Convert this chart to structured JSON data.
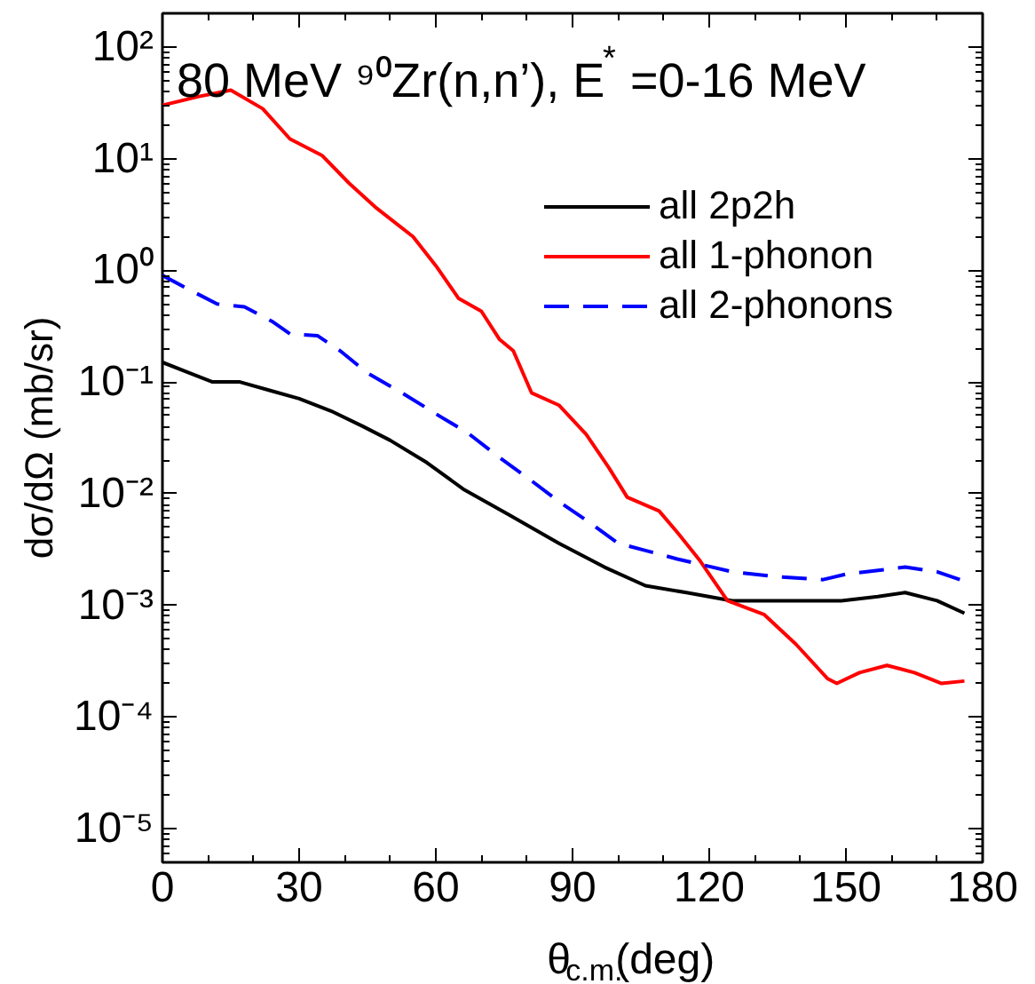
{
  "chart_data": {
    "type": "line",
    "title": "80 MeV ⁹⁰Zr(n,n’), E$^{*}$=0-16 MeV",
    "xlabel": "θ$_{c.m.}$(deg)",
    "ylabel": "dσ/dΩ (mb/sr)",
    "log": "y",
    "grid": false,
    "legend": "top right",
    "xlim": [
      0,
      180
    ],
    "xticks": [
      0,
      30,
      60,
      90,
      120,
      150,
      180
    ],
    "ylim": [
      5e-06,
      200
    ],
    "yticks": [
      {
        "value": 1e-05,
        "label": "10⁻⁵"
      },
      {
        "value": 0.0001,
        "label": "10⁻⁴"
      },
      {
        "value": 0.001,
        "label": "10⁻³"
      },
      {
        "value": 0.01,
        "label": "10⁻²"
      },
      {
        "value": 0.1,
        "label": "10⁻¹"
      },
      {
        "value": 1,
        "label": "10⁰"
      },
      {
        "value": 10,
        "label": "10¹"
      },
      {
        "value": 100,
        "label": "10²"
      }
    ],
    "series": [
      {
        "name": "all 2p2h",
        "color": "#000000",
        "line_style": "solid",
        "x": [
          0,
          6,
          11,
          17,
          24,
          30,
          37,
          44,
          50,
          58,
          66,
          76,
          87,
          97,
          106,
          115,
          125,
          137,
          149,
          157,
          163,
          170,
          176
        ],
        "values": [
          0.15,
          0.12,
          0.1,
          0.1,
          0.083,
          0.071,
          0.055,
          0.04,
          0.03,
          0.019,
          0.011,
          0.0065,
          0.0036,
          0.0022,
          0.0015,
          0.0013,
          0.0011,
          0.0011,
          0.0011,
          0.0012,
          0.0013,
          0.0011,
          0.00085
        ]
      },
      {
        "name": "all 1-phonon",
        "color": "#ff0000",
        "line_style": "solid",
        "x": [
          0,
          8,
          15,
          22,
          28,
          35,
          41,
          47,
          55,
          60,
          65,
          70,
          74,
          77,
          81,
          87,
          93,
          98,
          102,
          109,
          113,
          118,
          124,
          132,
          139,
          146,
          148,
          153,
          159,
          165,
          171,
          176
        ],
        "values": [
          30,
          36,
          41,
          28,
          15,
          10.7,
          6,
          3.6,
          2.0,
          1.1,
          0.56,
          0.43,
          0.24,
          0.19,
          0.08,
          0.062,
          0.034,
          0.017,
          0.0093,
          0.007,
          0.0045,
          0.0025,
          0.0011,
          0.00083,
          0.00045,
          0.00022,
          0.0002,
          0.00025,
          0.00029,
          0.00025,
          0.0002,
          0.00021
        ]
      },
      {
        "name": "all 2-phonons",
        "color": "#0000ff",
        "line_style": "dashed",
        "x": [
          0,
          5,
          12,
          18,
          24,
          28,
          34,
          39,
          45,
          53,
          61,
          67,
          74,
          80,
          87,
          93,
          100,
          106,
          113,
          125,
          135,
          145,
          150,
          163,
          170,
          175
        ],
        "values": [
          0.9,
          0.7,
          0.5,
          0.47,
          0.35,
          0.27,
          0.26,
          0.19,
          0.12,
          0.078,
          0.049,
          0.035,
          0.021,
          0.014,
          0.0085,
          0.0058,
          0.0036,
          0.0031,
          0.0026,
          0.002,
          0.0018,
          0.0017,
          0.0019,
          0.0022,
          0.002,
          0.0017
        ]
      }
    ]
  }
}
